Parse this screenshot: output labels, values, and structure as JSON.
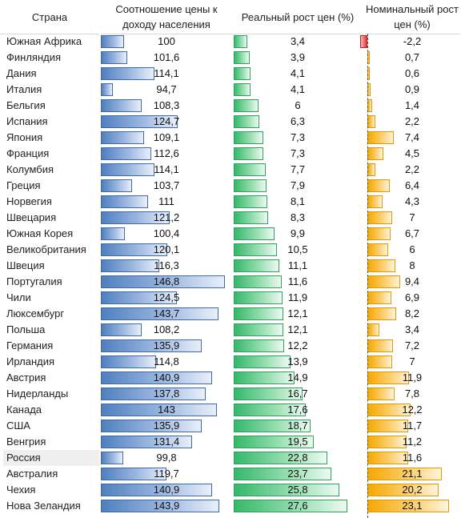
{
  "columns": {
    "country": "Страна",
    "ratio": "Соотношение цены к доходу населения",
    "real": "Реальный рост цен (%)",
    "nominal": "Номинальный рост цен (%)"
  },
  "highlight_country": "Россия",
  "colors": {
    "ratio_bar": "#4f7fc0",
    "real_bar": "#35b86a",
    "nominal_bar": "#f5a800",
    "negative_bar": "#e03a3a"
  },
  "chart_data": {
    "type": "table",
    "ratio_scale": [
      90,
      150
    ],
    "real_scale": [
      0,
      30
    ],
    "nominal_scale": [
      0,
      25
    ],
    "rows": [
      {
        "country": "Южная Африка",
        "ratio": "100",
        "real": "3,4",
        "nominal": "-2,2"
      },
      {
        "country": "Финляндия",
        "ratio": "101,6",
        "real": "3,9",
        "nominal": "0,7"
      },
      {
        "country": "Дания",
        "ratio": "114,1",
        "real": "4,1",
        "nominal": "0,6"
      },
      {
        "country": "Италия",
        "ratio": "94,7",
        "real": "4,1",
        "nominal": "0,9"
      },
      {
        "country": "Бельгия",
        "ratio": "108,3",
        "real": "6",
        "nominal": "1,4"
      },
      {
        "country": "Испания",
        "ratio": "124,7",
        "real": "6,3",
        "nominal": "2,2"
      },
      {
        "country": "Япония",
        "ratio": "109,1",
        "real": "7,3",
        "nominal": "7,4"
      },
      {
        "country": "Франция",
        "ratio": "112,6",
        "real": "7,3",
        "nominal": "4,5"
      },
      {
        "country": "Колумбия",
        "ratio": "114,1",
        "real": "7,7",
        "nominal": "2,2"
      },
      {
        "country": "Греция",
        "ratio": "103,7",
        "real": "7,9",
        "nominal": "6,4"
      },
      {
        "country": "Норвегия",
        "ratio": "111",
        "real": "8,1",
        "nominal": "4,3"
      },
      {
        "country": "Швецария",
        "ratio": "121,2",
        "real": "8,3",
        "nominal": "7"
      },
      {
        "country": "Южная Корея",
        "ratio": "100,4",
        "real": "9,9",
        "nominal": "6,7"
      },
      {
        "country": "Великобритания",
        "ratio": "120,1",
        "real": "10,5",
        "nominal": "6"
      },
      {
        "country": "Швеция",
        "ratio": "116,3",
        "real": "11,1",
        "nominal": "8"
      },
      {
        "country": "Португалия",
        "ratio": "146,8",
        "real": "11,6",
        "nominal": "9,4"
      },
      {
        "country": "Чили",
        "ratio": "124,5",
        "real": "11,9",
        "nominal": "6,9"
      },
      {
        "country": "Люксембург",
        "ratio": "143,7",
        "real": "12,1",
        "nominal": "8,2"
      },
      {
        "country": "Польша",
        "ratio": "108,2",
        "real": "12,1",
        "nominal": "3,4"
      },
      {
        "country": "Германия",
        "ratio": "135,9",
        "real": "12,2",
        "nominal": "7,2"
      },
      {
        "country": "Ирландия",
        "ratio": "114,8",
        "real": "13,9",
        "nominal": "7"
      },
      {
        "country": "Австрия",
        "ratio": "140,9",
        "real": "14,9",
        "nominal": "11,9"
      },
      {
        "country": "Нидерланды",
        "ratio": "137,8",
        "real": "16,7",
        "nominal": "7,8"
      },
      {
        "country": "Канада",
        "ratio": "143",
        "real": "17,6",
        "nominal": "12,2"
      },
      {
        "country": "США",
        "ratio": "135,9",
        "real": "18,7",
        "nominal": "11,7"
      },
      {
        "country": "Венгрия",
        "ratio": "131,4",
        "real": "19,5",
        "nominal": "11,2"
      },
      {
        "country": "Россия",
        "ratio": "99,8",
        "real": "22,8",
        "nominal": "11,6"
      },
      {
        "country": "Австралия",
        "ratio": "119,7",
        "real": "23,7",
        "nominal": "21,1"
      },
      {
        "country": "Чехия",
        "ratio": "140,9",
        "real": "25,8",
        "nominal": "20,2"
      },
      {
        "country": "Нова Зеландия",
        "ratio": "143,9",
        "real": "27,6",
        "nominal": "23,1"
      }
    ]
  }
}
